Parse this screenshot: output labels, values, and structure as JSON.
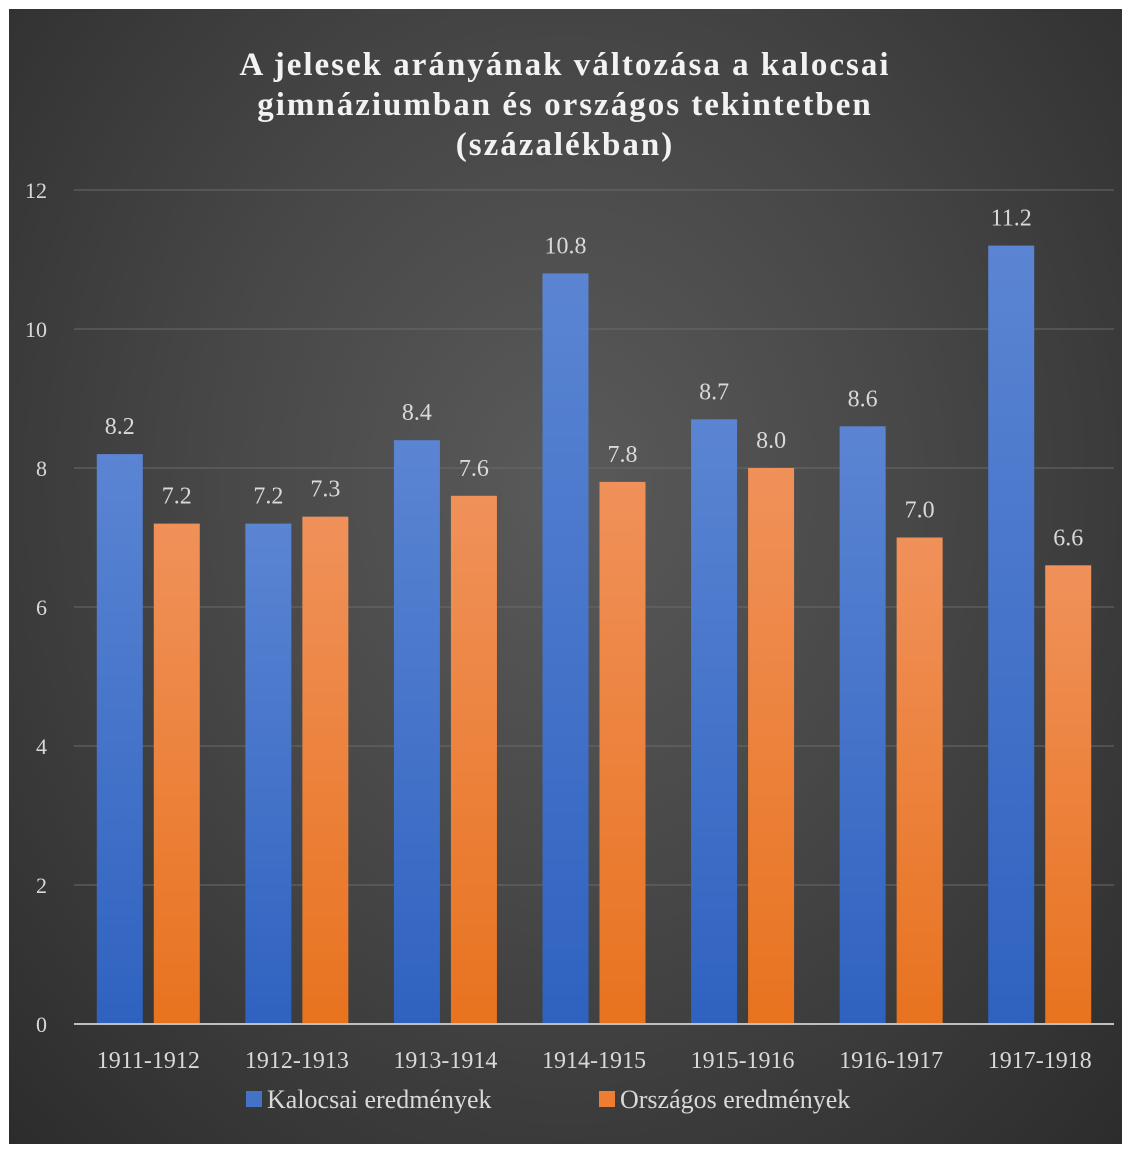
{
  "chart_data": {
    "type": "bar",
    "title_lines": [
      "A jelesek arányának változása a kalocsai",
      "gimnáziumban és országos tekintetben",
      "(százalékban)"
    ],
    "categories": [
      "1911-1912",
      "1912-1913",
      "1913-1914",
      "1914-1915",
      "1915-1916",
      "1916-1917",
      "1917-1918"
    ],
    "series": [
      {
        "name": "Kalocsai eredmények",
        "values": [
          8.2,
          7.2,
          8.4,
          10.8,
          8.7,
          8.6,
          11.2
        ],
        "labels": [
          "8.2",
          "7.2",
          "8.4",
          "10.8",
          "8.7",
          "8.6",
          "11.2"
        ],
        "color": "#4472c4"
      },
      {
        "name": "Országos eredmények",
        "values": [
          7.2,
          7.3,
          7.6,
          7.8,
          8.0,
          7.0,
          6.6
        ],
        "labels": [
          "7.2",
          "7.3",
          "7.6",
          "7.8",
          "8.0",
          "7.0",
          "6.6"
        ],
        "color": "#ed7d31"
      }
    ],
    "ylim": [
      0,
      12
    ],
    "yticks": [
      0,
      2,
      4,
      6,
      8,
      10,
      12
    ],
    "grid": true,
    "legend_position": "bottom",
    "background": "#404040"
  }
}
